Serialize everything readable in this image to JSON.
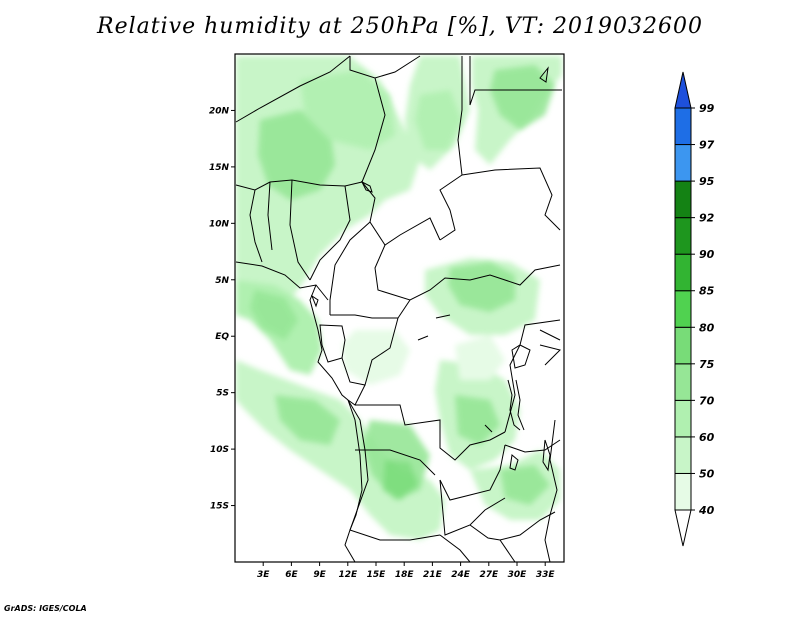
{
  "title": "Relative humidity at 250hPa [%], VT: 2019032600",
  "credit": "GrADS: IGES/COLA",
  "map": {
    "lon_range": [
      0,
      35
    ],
    "lat_range": [
      -20,
      25
    ],
    "lat_ticks": [
      {
        "value": 20,
        "label": "20N"
      },
      {
        "value": 15,
        "label": "15N"
      },
      {
        "value": 10,
        "label": "10N"
      },
      {
        "value": 5,
        "label": "5N"
      },
      {
        "value": 0,
        "label": "EQ"
      },
      {
        "value": -5,
        "label": "5S"
      },
      {
        "value": -10,
        "label": "10S"
      },
      {
        "value": -15,
        "label": "15S"
      }
    ],
    "lon_ticks": [
      {
        "value": 3,
        "label": "3E"
      },
      {
        "value": 6,
        "label": "6E"
      },
      {
        "value": 9,
        "label": "9E"
      },
      {
        "value": 12,
        "label": "12E"
      },
      {
        "value": 15,
        "label": "15E"
      },
      {
        "value": 18,
        "label": "18E"
      },
      {
        "value": 21,
        "label": "21E"
      },
      {
        "value": 24,
        "label": "24E"
      },
      {
        "value": 27,
        "label": "27E"
      },
      {
        "value": 30,
        "label": "30E"
      },
      {
        "value": 33,
        "label": "33E"
      }
    ]
  },
  "colorbar": {
    "levels": [
      {
        "label": "40",
        "color": "#ffffff"
      },
      {
        "label": "50",
        "color": "#e6fbe6"
      },
      {
        "label": "60",
        "color": "#c8f5c8"
      },
      {
        "label": "70",
        "color": "#b0f0b0"
      },
      {
        "label": "75",
        "color": "#96e696"
      },
      {
        "label": "80",
        "color": "#78dc78"
      },
      {
        "label": "85",
        "color": "#50d250"
      },
      {
        "label": "90",
        "color": "#32b432"
      },
      {
        "label": "92",
        "color": "#1e961e"
      },
      {
        "label": "95",
        "color": "#148214"
      },
      {
        "label": "97",
        "color": "#3c96f0"
      },
      {
        "label": "99",
        "color": "#1e6ee6"
      }
    ],
    "top_color": "#1e50dc"
  }
}
